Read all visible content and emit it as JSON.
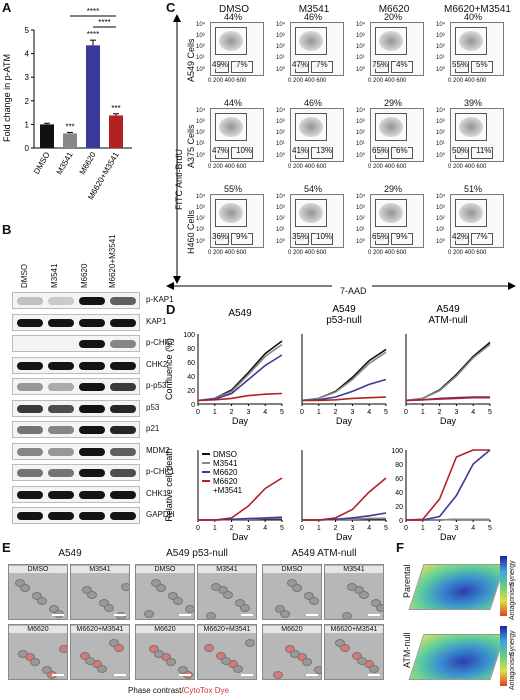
{
  "panels": {
    "A": "A",
    "B": "B",
    "C": "C",
    "D": "D",
    "E": "E",
    "F": "F"
  },
  "panelA": {
    "ylabel": "Fold change in p-ATM",
    "chart_data": {
      "type": "bar",
      "categories": [
        "DMSO",
        "M3541",
        "M6620",
        "M6620+M3541"
      ],
      "values": [
        1.0,
        0.62,
        4.35,
        1.38
      ],
      "errors": [
        0.05,
        0.04,
        0.22,
        0.07
      ],
      "colors": [
        "#111111",
        "#888888",
        "#3a3a9a",
        "#b22222"
      ],
      "ylim": [
        0,
        5
      ],
      "yticks": [
        "0",
        "1",
        "2",
        "3",
        "4",
        "5"
      ],
      "sig": [
        "",
        "***",
        "****",
        "***"
      ],
      "brackets": [
        "****",
        "****"
      ]
    }
  },
  "panelB": {
    "lanes": [
      "DMSO",
      "M3541",
      "M6620",
      "M6620+M3541"
    ],
    "rows": [
      {
        "label": "p-KAP1",
        "b": [
          0.1,
          0.05,
          1,
          0.6
        ]
      },
      {
        "label": "KAP1",
        "b": [
          1,
          1,
          1,
          1
        ]
      },
      {
        "label": "p-CHK2",
        "b": [
          0,
          0,
          1,
          0.4
        ]
      },
      {
        "label": "CHK2",
        "b": [
          1,
          1,
          1,
          1
        ]
      },
      {
        "label": "p-p53",
        "b": [
          0.3,
          0.2,
          1,
          0.8
        ]
      },
      {
        "label": "p53",
        "b": [
          0.8,
          0.7,
          1,
          0.9
        ]
      },
      {
        "label": "p21",
        "b": [
          0.5,
          0.4,
          1,
          0.9
        ]
      },
      {
        "label": "MDM2",
        "b": [
          0.4,
          0.3,
          1,
          0.6
        ]
      },
      {
        "label": "p-CHK1",
        "b": [
          0.5,
          0.5,
          1,
          0.7
        ]
      },
      {
        "label": "CHK1",
        "b": [
          1,
          1,
          1,
          1
        ]
      },
      {
        "label": "GAPDH",
        "b": [
          1,
          1,
          1,
          1
        ]
      }
    ]
  },
  "panelC": {
    "cols": [
      "DMSO",
      "M3541",
      "M6620",
      "M6620+M3541"
    ],
    "rows": [
      {
        "label": "A549 Cells",
        "top": [
          "44%",
          "46%",
          "20%",
          "40%"
        ],
        "bl": [
          "49%",
          "47%",
          "75%",
          "55%"
        ],
        "br": [
          "7%",
          "7%",
          "4%",
          "5%"
        ]
      },
      {
        "label": "A375 Cells",
        "top": [
          "44%",
          "46%",
          "29%",
          "39%"
        ],
        "bl": [
          "47%",
          "41%",
          "65%",
          "50%"
        ],
        "br": [
          "10%",
          "13%",
          "6%",
          "11%"
        ]
      },
      {
        "label": "H460 Cells",
        "top": [
          "55%",
          "54%",
          "29%",
          "51%"
        ],
        "bl": [
          "36%",
          "35%",
          "65%",
          "42%"
        ],
        "br": [
          "9%",
          "10%",
          "9%",
          "7%"
        ]
      }
    ],
    "yaxis": "FITC Anti-BrdU",
    "xaxis": "7-AAD",
    "yticks": [
      "10⁴",
      "10³",
      "10²",
      "10¹",
      "10⁰"
    ],
    "xticks": "0 200 400 600"
  },
  "panelD": {
    "titles": [
      "A549",
      "A549\np53-null",
      "A549\nATM-null"
    ],
    "title1": "A549",
    "title2a": "A549",
    "title2b": "p53-null",
    "title3a": "A549",
    "title3b": "ATM-null",
    "ylabel_top": "Confluence (%)",
    "ylabel_bottom": "Relative cell death",
    "xlabel": "Day",
    "xticks": [
      "0",
      "1",
      "2",
      "3",
      "4",
      "5"
    ],
    "yticks_top": [
      "100",
      "80",
      "60",
      "40",
      "20",
      "0"
    ],
    "yticks_bottom3": [
      "100",
      "80",
      "60",
      "40",
      "20",
      "0"
    ],
    "legend": [
      "DMSO",
      "M3541",
      "M6620",
      "M6620\n+M3541"
    ],
    "legend1": "DMSO",
    "legend2": "M3541",
    "legend3": "M6620",
    "legend4a": "M6620",
    "legend4b": "+M3541",
    "chart_data": {
      "type": "line",
      "x": [
        0,
        1,
        2,
        3,
        4,
        5
      ],
      "confluence": {
        "A549": {
          "DMSO": [
            5,
            8,
            20,
            45,
            72,
            90
          ],
          "M3541": [
            5,
            8,
            18,
            42,
            68,
            85
          ],
          "M6620": [
            5,
            7,
            15,
            35,
            55,
            70
          ],
          "M6620+M3541": [
            5,
            6,
            8,
            12,
            14,
            15
          ]
        },
        "p53-null": {
          "DMSO": [
            5,
            8,
            18,
            38,
            62,
            78
          ],
          "M3541": [
            5,
            8,
            17,
            35,
            58,
            74
          ],
          "M6620": [
            5,
            6,
            10,
            18,
            28,
            35
          ],
          "M6620+M3541": [
            5,
            5,
            6,
            8,
            9,
            10
          ]
        },
        "ATM-null": {
          "DMSO": [
            5,
            8,
            20,
            42,
            68,
            88
          ],
          "M3541": [
            5,
            8,
            19,
            40,
            66,
            85
          ],
          "M6620": [
            5,
            6,
            8,
            9,
            10,
            10
          ],
          "M6620+M3541": [
            5,
            6,
            7,
            8,
            9,
            9
          ]
        }
      },
      "death": {
        "A549": {
          "DMSO": [
            0,
            0,
            1,
            1,
            2,
            2
          ],
          "M3541": [
            0,
            0,
            1,
            1,
            2,
            2
          ],
          "M6620": [
            0,
            0,
            1,
            2,
            3,
            4
          ],
          "M6620+M3541": [
            0,
            0,
            3,
            20,
            45,
            60
          ]
        },
        "p53-null": {
          "DMSO": [
            0,
            0,
            1,
            1,
            2,
            2
          ],
          "M3541": [
            0,
            0,
            1,
            1,
            2,
            2
          ],
          "M6620": [
            0,
            0,
            1,
            3,
            6,
            10
          ],
          "M6620+M3541": [
            0,
            0,
            3,
            15,
            40,
            60
          ]
        },
        "ATM-null": {
          "DMSO": [
            0,
            0,
            0,
            1,
            1,
            1
          ],
          "M3541": [
            0,
            0,
            0,
            1,
            1,
            1
          ],
          "M6620": [
            0,
            0,
            5,
            35,
            80,
            100
          ],
          "M6620+M3541": [
            0,
            1,
            30,
            90,
            100,
            100
          ]
        }
      }
    }
  },
  "panelE": {
    "groups": [
      "A549",
      "A549 p53-null",
      "A549 ATM-null"
    ],
    "top": [
      "DMSO",
      "M3541"
    ],
    "bottom": [
      "M6620",
      "M6620+M3541"
    ],
    "caption1": "Phase contrast/",
    "caption2": "CytoTox Dye"
  },
  "panelF": {
    "rows": [
      "Parental",
      "ATM-null"
    ],
    "synergy": "Synergy",
    "antagonism": "Antagonism"
  }
}
